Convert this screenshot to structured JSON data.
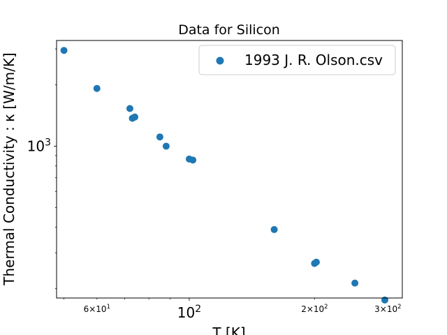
{
  "chart_data": {
    "type": "scatter",
    "title": "Data for Silicon",
    "xlabel": "T [K]",
    "ylabel": "Thermal Conductivity : κ [W/m/K]",
    "xscale": "log",
    "yscale": "log",
    "xlim": [
      48,
      325
    ],
    "ylim": [
      180,
      3300
    ],
    "grid": false,
    "legend_position": "top-right",
    "x_ticks": [
      {
        "value": 60,
        "mantissa": "6",
        "exponent": "1",
        "major": false
      },
      {
        "value": 100,
        "mantissa": "10",
        "exponent": "2",
        "major": true
      },
      {
        "value": 200,
        "mantissa": "2",
        "exponent": "2",
        "major": false
      },
      {
        "value": 300,
        "mantissa": "3",
        "exponent": "2",
        "major": false
      }
    ],
    "y_ticks": [
      {
        "value": 1000,
        "mantissa": "10",
        "exponent": "3",
        "major": true
      }
    ],
    "series": [
      {
        "name": "1993 J. R. Olson.csv",
        "color": "#1f77b4",
        "points": [
          {
            "x": 50,
            "y": 2950
          },
          {
            "x": 60,
            "y": 1920
          },
          {
            "x": 72,
            "y": 1530
          },
          {
            "x": 73,
            "y": 1370
          },
          {
            "x": 74,
            "y": 1390
          },
          {
            "x": 85,
            "y": 1110
          },
          {
            "x": 88,
            "y": 1000
          },
          {
            "x": 100,
            "y": 865
          },
          {
            "x": 102,
            "y": 855
          },
          {
            "x": 160,
            "y": 390
          },
          {
            "x": 200,
            "y": 266
          },
          {
            "x": 202,
            "y": 270
          },
          {
            "x": 250,
            "y": 213
          },
          {
            "x": 295,
            "y": 176
          }
        ]
      }
    ]
  }
}
